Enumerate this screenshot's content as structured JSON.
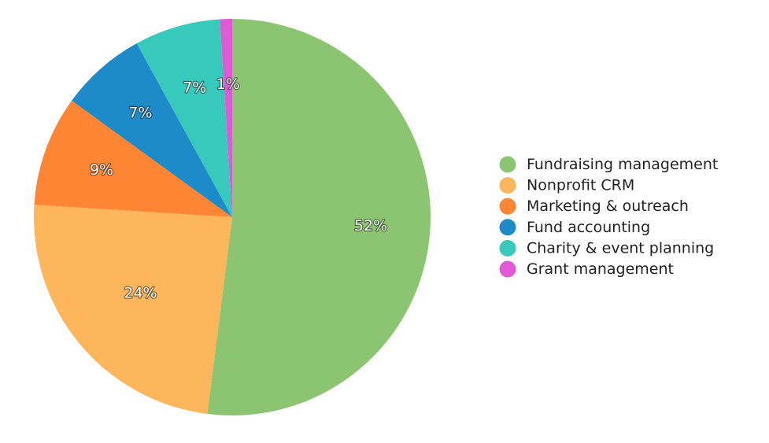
{
  "chart_data": {
    "type": "pie",
    "title": "",
    "categories": [
      "Fundraising management",
      "Nonprofit CRM",
      "Marketing & outreach",
      "Fund accounting",
      "Charity & event planning",
      "Grant management"
    ],
    "values": [
      52,
      24,
      9,
      7,
      7,
      1
    ],
    "value_labels": [
      "52%",
      "24%",
      "9%",
      "7%",
      "7%",
      "1%"
    ],
    "colors": [
      "#8bc571",
      "#fdb65c",
      "#fd8533",
      "#1e8bc9",
      "#38c9bd",
      "#e15ad5"
    ],
    "start": "12 o'clock",
    "direction": "clockwise",
    "legend": "right"
  }
}
